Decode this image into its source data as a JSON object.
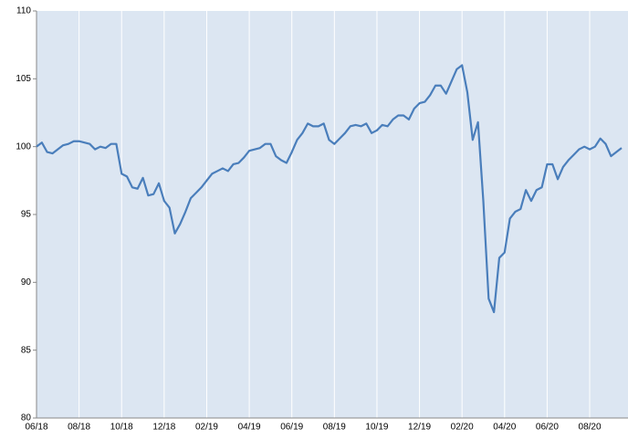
{
  "chart_data": {
    "type": "line",
    "values": [
      100,
      100.3,
      99.6,
      99.5,
      99.8,
      100.1,
      100.2,
      100.4,
      100.4,
      100.3,
      100.2,
      99.8,
      100.0,
      99.9,
      100.2,
      100.2,
      98.0,
      97.8,
      97.0,
      96.9,
      97.7,
      96.4,
      96.5,
      97.3,
      96.0,
      95.5,
      93.6,
      94.3,
      95.2,
      96.2,
      96.6,
      97.0,
      97.5,
      98.0,
      98.2,
      98.4,
      98.2,
      98.7,
      98.8,
      99.2,
      99.7,
      99.8,
      99.9,
      100.2,
      100.2,
      99.3,
      99.0,
      98.8,
      99.6,
      100.5,
      101.0,
      101.7,
      101.5,
      101.5,
      101.7,
      100.5,
      100.2,
      100.6,
      101.0,
      101.5,
      101.6,
      101.5,
      101.7,
      101.0,
      101.2,
      101.6,
      101.5,
      102.0,
      102.3,
      102.3,
      102.0,
      102.8,
      103.2,
      103.3,
      103.8,
      104.5,
      104.5,
      103.9,
      104.8,
      105.7,
      106.0,
      104.0,
      100.5,
      101.8,
      96.0,
      88.8,
      87.8,
      91.8,
      92.2,
      94.7,
      95.2,
      95.4,
      96.8,
      96.0,
      96.8,
      97.0,
      98.7,
      98.7,
      97.6,
      98.5,
      99.0,
      99.4,
      99.8,
      100.0,
      99.8,
      100.0,
      100.6,
      100.2,
      99.3,
      99.6,
      99.9
    ],
    "color": "#4a7ebb",
    "xlim": [
      0,
      110
    ],
    "xticks": [
      {
        "value": 0,
        "label": "06/18"
      },
      {
        "value": 8,
        "label": "08/18"
      },
      {
        "value": 16,
        "label": "10/18"
      },
      {
        "value": 24,
        "label": "12/18"
      },
      {
        "value": 32,
        "label": "02/19"
      },
      {
        "value": 40,
        "label": "04/19"
      },
      {
        "value": 48,
        "label": "06/19"
      },
      {
        "value": 56,
        "label": "08/19"
      },
      {
        "value": 64,
        "label": "10/19"
      },
      {
        "value": 72,
        "label": "12/19"
      },
      {
        "value": 80,
        "label": "02/20"
      },
      {
        "value": 88,
        "label": "04/20"
      },
      {
        "value": 96,
        "label": "06/20"
      },
      {
        "value": 104,
        "label": "08/20"
      }
    ],
    "ylim": [
      80,
      110
    ],
    "yticks": [
      80,
      85,
      90,
      95,
      100,
      105,
      110
    ],
    "grid": true
  }
}
